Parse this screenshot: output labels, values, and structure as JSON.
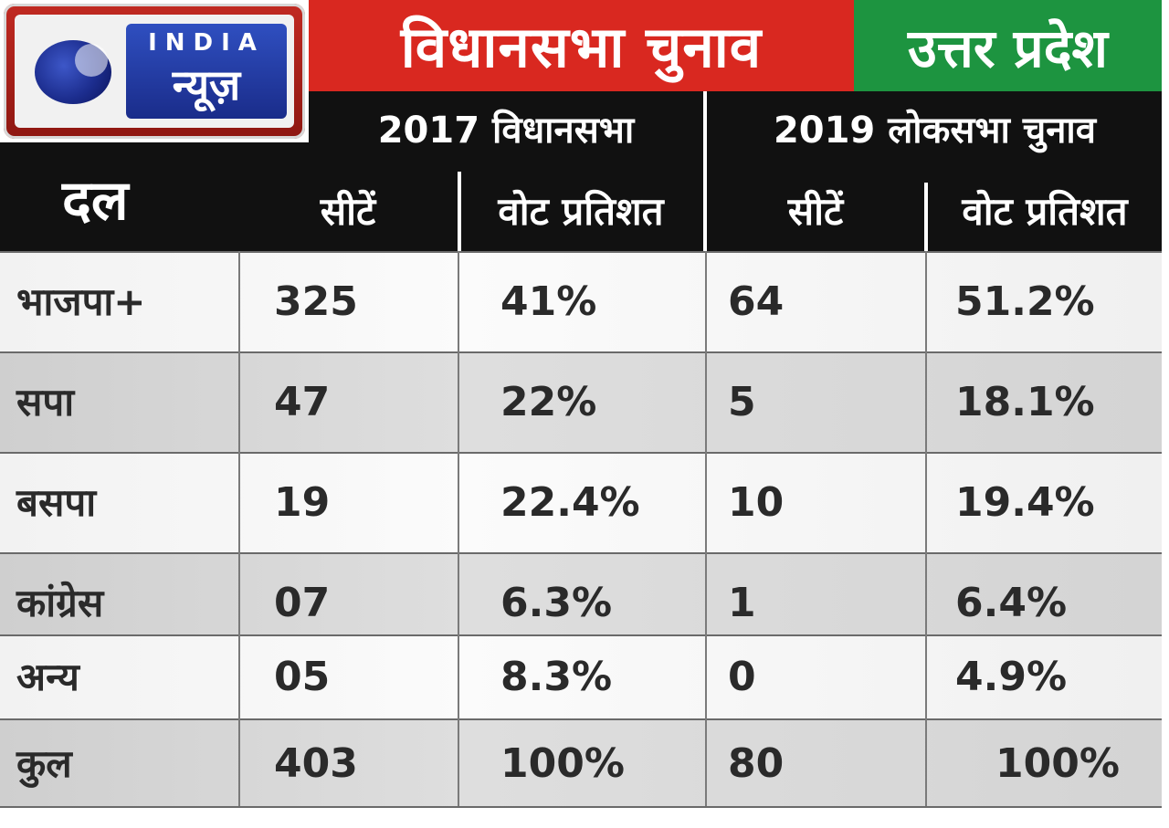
{
  "banner": {
    "title": "विधानसभा चुनाव",
    "state": "उत्तर प्रदेश",
    "title_bg": "#d92820",
    "state_bg": "#1d9440"
  },
  "logo": {
    "line1": "INDIA",
    "line2": "न्यूज़"
  },
  "table": {
    "group_2017": "2017 विधानसभा",
    "group_2019": "2019 लोकसभा चुनाव",
    "col_party": "दल",
    "col_seats": "सीटें",
    "col_vote": "वोट प्रतिशत",
    "rows": [
      {
        "party": "भाजपा+",
        "seats_2017": "325",
        "vote_2017": "41%",
        "seats_2019": "64",
        "vote_2019": "51.2%"
      },
      {
        "party": "सपा",
        "seats_2017": "47",
        "vote_2017": "22%",
        "seats_2019": "5",
        "vote_2019": "18.1%"
      },
      {
        "party": "बसपा",
        "seats_2017": "19",
        "vote_2017": "22.4%",
        "seats_2019": "10",
        "vote_2019": "19.4%"
      },
      {
        "party": "कांग्रेस",
        "seats_2017": "07",
        "vote_2017": "6.3%",
        "seats_2019": "1",
        "vote_2019": "6.4%"
      },
      {
        "party": "अन्य",
        "seats_2017": "05",
        "vote_2017": "8.3%",
        "seats_2019": "0",
        "vote_2019": "4.9%"
      },
      {
        "party": "कुल",
        "seats_2017": "403",
        "vote_2017": "100%",
        "seats_2019": "80",
        "vote_2019": "100%"
      }
    ]
  }
}
